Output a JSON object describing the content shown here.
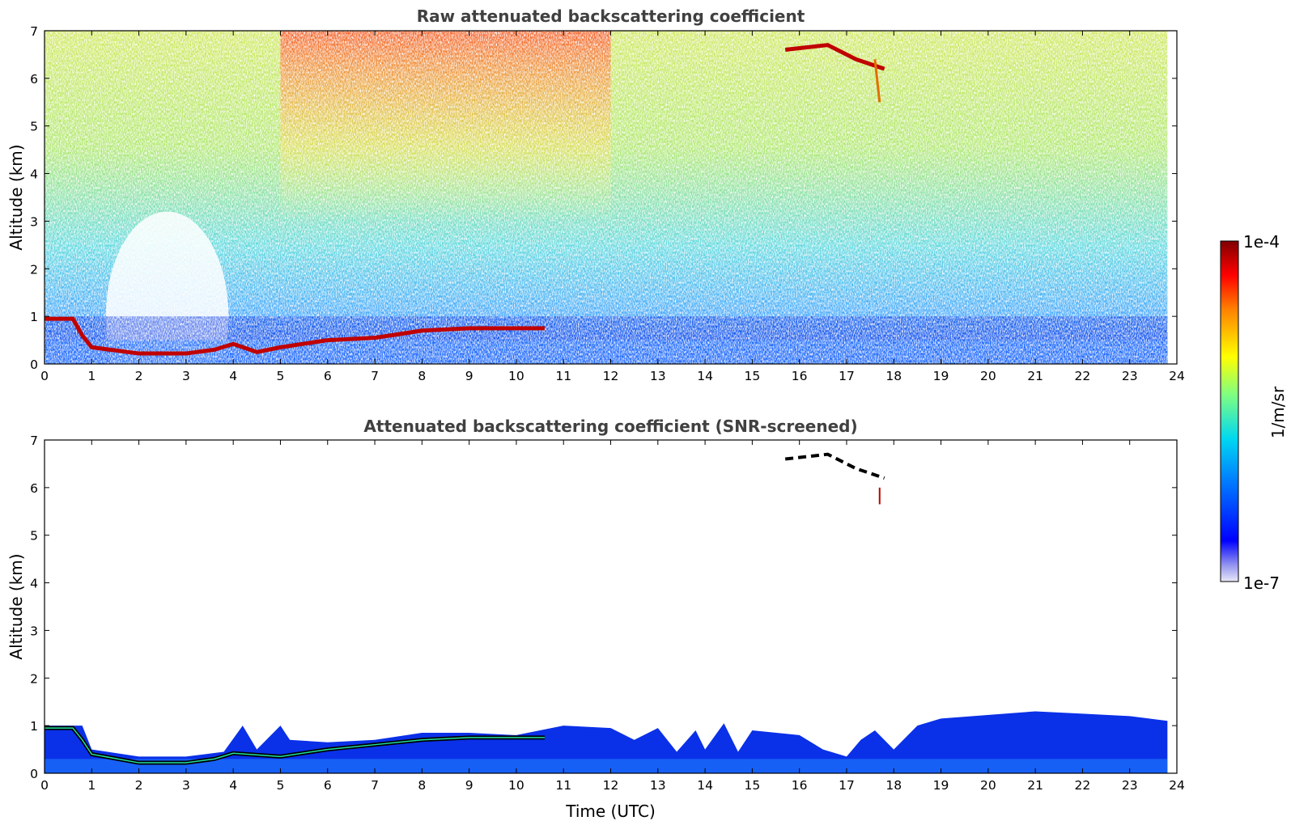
{
  "chart_data": [
    {
      "type": "heatmap",
      "title": "Raw attenuated backscattering coefficient",
      "ylabel": "Altitude (km)",
      "xlabel": "",
      "xlim": [
        0,
        24
      ],
      "ylim": [
        0,
        7
      ],
      "x_ticks": [
        "0",
        "1",
        "2",
        "3",
        "4",
        "5",
        "6",
        "7",
        "8",
        "9",
        "10",
        "11",
        "12",
        "13",
        "14",
        "15",
        "16",
        "17",
        "18",
        "19",
        "20",
        "21",
        "22",
        "23",
        "24"
      ],
      "y_ticks": [
        "0",
        "1",
        "2",
        "3",
        "4",
        "5",
        "6",
        "7"
      ],
      "data_extent_hours": [
        0,
        23.8
      ],
      "cloud_base_layer": [
        [
          0.0,
          0.95
        ],
        [
          0.6,
          0.95
        ],
        [
          0.8,
          0.6
        ],
        [
          1.0,
          0.35
        ],
        [
          2.0,
          0.22
        ],
        [
          3.0,
          0.22
        ],
        [
          3.6,
          0.3
        ],
        [
          4.0,
          0.42
        ],
        [
          4.5,
          0.25
        ],
        [
          5.0,
          0.35
        ],
        [
          6.0,
          0.5
        ],
        [
          7.0,
          0.55
        ],
        [
          8.0,
          0.7
        ],
        [
          9.0,
          0.75
        ],
        [
          10.0,
          0.75
        ],
        [
          10.6,
          0.75
        ]
      ],
      "upper_cloud": [
        [
          15.7,
          6.6
        ],
        [
          16.6,
          6.7
        ],
        [
          17.2,
          6.4
        ],
        [
          17.8,
          6.2
        ]
      ],
      "grid": false
    },
    {
      "type": "heatmap",
      "title": "Attenuated backscattering coefficient (SNR-screened)",
      "ylabel": "Altitude (km)",
      "xlabel": "Time (UTC)",
      "xlim": [
        0,
        24
      ],
      "ylim": [
        0,
        7
      ],
      "x_ticks": [
        "0",
        "1",
        "2",
        "3",
        "4",
        "5",
        "6",
        "7",
        "8",
        "9",
        "10",
        "11",
        "12",
        "13",
        "14",
        "15",
        "16",
        "17",
        "18",
        "19",
        "20",
        "21",
        "22",
        "23",
        "24"
      ],
      "y_ticks": [
        "0",
        "1",
        "2",
        "3",
        "4",
        "5",
        "6",
        "7"
      ],
      "boundary_layer_top": [
        [
          0.0,
          1.0
        ],
        [
          0.8,
          1.0
        ],
        [
          1.0,
          0.5
        ],
        [
          2.0,
          0.35
        ],
        [
          3.0,
          0.35
        ],
        [
          3.8,
          0.45
        ],
        [
          4.2,
          1.0
        ],
        [
          4.5,
          0.5
        ],
        [
          5.0,
          1.0
        ],
        [
          5.2,
          0.7
        ],
        [
          6.0,
          0.65
        ],
        [
          7.0,
          0.7
        ],
        [
          8.0,
          0.85
        ],
        [
          9.0,
          0.85
        ],
        [
          10.0,
          0.8
        ],
        [
          11.0,
          1.0
        ],
        [
          12.0,
          0.95
        ],
        [
          12.5,
          0.7
        ],
        [
          13.0,
          0.95
        ],
        [
          13.4,
          0.45
        ],
        [
          13.8,
          0.9
        ],
        [
          14.0,
          0.5
        ],
        [
          14.4,
          1.05
        ],
        [
          14.7,
          0.45
        ],
        [
          15.0,
          0.9
        ],
        [
          16.0,
          0.8
        ],
        [
          16.5,
          0.5
        ],
        [
          17.0,
          0.35
        ],
        [
          17.3,
          0.7
        ],
        [
          17.6,
          0.9
        ],
        [
          18.0,
          0.5
        ],
        [
          18.5,
          1.0
        ],
        [
          19.0,
          1.15
        ],
        [
          21.0,
          1.3
        ],
        [
          22.0,
          1.25
        ],
        [
          23.0,
          1.2
        ],
        [
          23.8,
          1.1
        ]
      ],
      "cloud_line": [
        [
          0.0,
          0.95
        ],
        [
          0.6,
          0.95
        ],
        [
          0.8,
          0.7
        ],
        [
          1.0,
          0.4
        ],
        [
          2.0,
          0.22
        ],
        [
          3.0,
          0.22
        ],
        [
          3.6,
          0.3
        ],
        [
          4.0,
          0.42
        ],
        [
          5.0,
          0.35
        ],
        [
          6.0,
          0.5
        ],
        [
          7.0,
          0.6
        ],
        [
          8.0,
          0.7
        ],
        [
          9.0,
          0.75
        ],
        [
          10.0,
          0.75
        ],
        [
          10.6,
          0.75
        ]
      ],
      "upper_cloud": [
        [
          15.7,
          6.6
        ],
        [
          16.6,
          6.7
        ],
        [
          17.2,
          6.4
        ],
        [
          17.8,
          6.2
        ]
      ],
      "grid": false
    }
  ],
  "colorbar": {
    "label": "1/m/sr",
    "min_label": "1e-7",
    "max_label": "1e-4",
    "colormap": "jet",
    "colors": [
      "#e8e8f8",
      "#0000ff",
      "#00a0ff",
      "#00e8e8",
      "#80ff80",
      "#ffff00",
      "#ff8000",
      "#ff0000",
      "#800000"
    ]
  },
  "colors": {
    "layer": "#0020d0",
    "deep": "#0030e0",
    "aerosol": "#2060ff",
    "cloud": "#c00000",
    "background_text": "#404040"
  }
}
